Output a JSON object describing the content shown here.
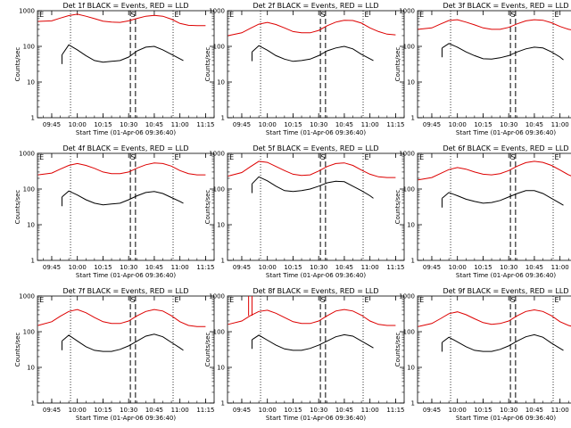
{
  "figure": {
    "common": {
      "type": "line",
      "xlabel": "Start Time (01-Apr-06 09:36:40)",
      "ylabel": "Counts/sec",
      "x_ticks": [
        "09:45",
        "10:00",
        "10:15",
        "10:30",
        "10:45",
        "11:00",
        "11:15"
      ],
      "x_range": [
        "09:36:40",
        "11:20"
      ],
      "y_scale": "log",
      "ylim": [
        1,
        1000
      ],
      "y_ticks": [
        "1",
        "10",
        "100",
        "1000"
      ],
      "series_colors": {
        "events": "#000000",
        "lld": "#dd0000"
      },
      "markers": [
        "E",
        "S",
        "E"
      ],
      "grid": false
    }
  },
  "chart_data": [
    {
      "title": "Det 1f BLACK = Events, RED = LLD",
      "markers": {
        "E1": "09:37",
        "S_dash1": "10:31",
        "S_dash2": "10:34",
        "E2": "10:56"
      },
      "dotted": [
        "09:56",
        "10:56"
      ],
      "series": [
        {
          "name": "Events",
          "x": [
            "09:51",
            "09:55",
            "10:00",
            "10:05",
            "10:10",
            "10:15",
            "10:20",
            "10:25",
            "10:30",
            "10:35",
            "10:40",
            "10:45",
            "10:50",
            "10:55",
            "11:00",
            "11:02"
          ],
          "y": [
            58,
            110,
            80,
            55,
            40,
            36,
            38,
            40,
            50,
            75,
            95,
            100,
            80,
            60,
            45,
            40
          ]
        },
        {
          "name": "LLD",
          "x": [
            "09:37",
            "09:45",
            "09:50",
            "09:55",
            "10:00",
            "10:05",
            "10:10",
            "10:15",
            "10:20",
            "10:25",
            "10:30",
            "10:35",
            "10:40",
            "10:45",
            "10:50",
            "10:55",
            "11:00",
            "11:05",
            "11:10",
            "11:15"
          ],
          "y": [
            500,
            520,
            620,
            730,
            800,
            700,
            600,
            510,
            480,
            470,
            520,
            610,
            700,
            740,
            700,
            580,
            440,
            390,
            380,
            380
          ]
        }
      ]
    },
    {
      "title": "Det 2f BLACK = Events, RED = LLD",
      "markers": {
        "E1": "09:37",
        "S_dash1": "10:31",
        "S_dash2": "10:34",
        "E2": "10:56"
      },
      "dotted": [
        "09:56",
        "10:56"
      ],
      "series": [
        {
          "name": "Events",
          "x": [
            "09:51",
            "09:55",
            "10:00",
            "10:05",
            "10:10",
            "10:15",
            "10:20",
            "10:25",
            "10:30",
            "10:35",
            "10:40",
            "10:45",
            "10:50",
            "10:55",
            "11:00",
            "11:02"
          ],
          "y": [
            70,
            105,
            78,
            55,
            44,
            38,
            40,
            44,
            55,
            75,
            90,
            100,
            85,
            60,
            45,
            40
          ]
        },
        {
          "name": "LLD",
          "x": [
            "09:37",
            "09:45",
            "09:50",
            "09:55",
            "10:00",
            "10:05",
            "10:10",
            "10:15",
            "10:20",
            "10:25",
            "10:30",
            "10:35",
            "10:40",
            "10:45",
            "10:50",
            "10:55",
            "11:00",
            "11:05",
            "11:10",
            "11:15"
          ],
          "y": [
            200,
            240,
            320,
            420,
            470,
            410,
            330,
            260,
            240,
            240,
            280,
            380,
            480,
            540,
            530,
            450,
            330,
            260,
            220,
            210
          ]
        }
      ]
    },
    {
      "title": "Det 3f BLACK = Events, RED = LLD",
      "markers": {
        "E1": "09:37",
        "S_dash1": "10:31",
        "S_dash2": "10:34",
        "E2": "10:56"
      },
      "dotted": [
        "09:56",
        "10:56"
      ],
      "series": [
        {
          "name": "Events",
          "x": [
            "09:51",
            "09:55",
            "10:00",
            "10:05",
            "10:10",
            "10:15",
            "10:20",
            "10:25",
            "10:30",
            "10:35",
            "10:40",
            "10:45",
            "10:50",
            "10:55",
            "11:00",
            "11:02"
          ],
          "y": [
            90,
            120,
            95,
            70,
            55,
            45,
            44,
            48,
            55,
            70,
            85,
            95,
            90,
            70,
            50,
            42
          ]
        },
        {
          "name": "LLD",
          "x": [
            "09:37",
            "09:45",
            "09:50",
            "09:55",
            "10:00",
            "10:05",
            "10:10",
            "10:15",
            "10:20",
            "10:25",
            "10:30",
            "10:35",
            "10:40",
            "10:45",
            "10:50",
            "10:55",
            "11:00",
            "11:05",
            "11:10",
            "11:15"
          ],
          "y": [
            300,
            330,
            420,
            530,
            560,
            480,
            400,
            330,
            300,
            300,
            340,
            430,
            520,
            560,
            540,
            460,
            360,
            300,
            270,
            260
          ]
        }
      ]
    },
    {
      "title": "Det 4f BLACK = Events, RED = LLD",
      "markers": {
        "E1": "09:37",
        "S_dash1": "10:31",
        "S_dash2": "10:34",
        "E2": "10:56"
      },
      "dotted": [
        "09:56",
        "10:56"
      ],
      "series": [
        {
          "name": "Events",
          "x": [
            "09:51",
            "09:55",
            "10:00",
            "10:05",
            "10:10",
            "10:15",
            "10:20",
            "10:25",
            "10:30",
            "10:35",
            "10:40",
            "10:45",
            "10:50",
            "10:55",
            "11:00",
            "11:02"
          ],
          "y": [
            60,
            88,
            68,
            50,
            40,
            36,
            38,
            40,
            50,
            65,
            80,
            85,
            75,
            58,
            45,
            40
          ]
        },
        {
          "name": "LLD",
          "x": [
            "09:37",
            "09:45",
            "09:50",
            "09:55",
            "10:00",
            "10:05",
            "10:10",
            "10:15",
            "10:20",
            "10:25",
            "10:30",
            "10:35",
            "10:40",
            "10:45",
            "10:50",
            "10:55",
            "11:00",
            "11:05",
            "11:10",
            "11:15"
          ],
          "y": [
            250,
            280,
            360,
            460,
            520,
            460,
            380,
            300,
            270,
            270,
            300,
            390,
            480,
            540,
            520,
            440,
            330,
            270,
            250,
            250
          ]
        }
      ]
    },
    {
      "title": "Det 5f BLACK = Events, RED = LLD",
      "markers": {
        "E1": "09:37",
        "S_dash1": "10:31",
        "S_dash2": "10:34",
        "E2": "10:56"
      },
      "dotted": [
        "09:56",
        "10:56"
      ],
      "series": [
        {
          "name": "Events",
          "x": [
            "09:51",
            "09:55",
            "10:00",
            "10:05",
            "10:10",
            "10:15",
            "10:20",
            "10:25",
            "10:30",
            "10:35",
            "10:40",
            "10:45",
            "10:50",
            "10:55",
            "11:00",
            "11:02"
          ],
          "y": [
            140,
            220,
            170,
            120,
            90,
            85,
            90,
            100,
            120,
            150,
            165,
            160,
            120,
            90,
            65,
            55
          ]
        },
        {
          "name": "LLD",
          "x": [
            "09:37",
            "09:45",
            "09:50",
            "09:55",
            "10:00",
            "10:05",
            "10:10",
            "10:15",
            "10:20",
            "10:25",
            "10:30",
            "10:35",
            "10:40",
            "10:45",
            "10:50",
            "10:55",
            "11:00",
            "11:05",
            "11:10",
            "11:15"
          ],
          "y": [
            230,
            290,
            420,
            600,
            560,
            430,
            330,
            260,
            240,
            250,
            320,
            430,
            520,
            540,
            460,
            340,
            260,
            220,
            210,
            210
          ]
        }
      ]
    },
    {
      "title": "Det 6f BLACK = Events, RED = LLD",
      "markers": {
        "E1": "09:37",
        "S_dash1": "10:31",
        "S_dash2": "10:34",
        "E2": "10:56"
      },
      "dotted": [
        "09:56",
        "10:56"
      ],
      "series": [
        {
          "name": "Events",
          "x": [
            "09:51",
            "09:55",
            "10:00",
            "10:05",
            "10:10",
            "10:15",
            "10:20",
            "10:25",
            "10:30",
            "10:35",
            "10:40",
            "10:45",
            "10:50",
            "10:55",
            "11:00",
            "11:02"
          ],
          "y": [
            55,
            80,
            65,
            52,
            45,
            40,
            42,
            48,
            60,
            75,
            90,
            90,
            75,
            55,
            40,
            35
          ]
        },
        {
          "name": "LLD",
          "x": [
            "09:37",
            "09:45",
            "09:50",
            "09:55",
            "10:00",
            "10:05",
            "10:10",
            "10:15",
            "10:20",
            "10:25",
            "10:30",
            "10:35",
            "10:40",
            "10:45",
            "10:50",
            "10:55",
            "11:00",
            "11:05",
            "11:10",
            "11:15"
          ],
          "y": [
            180,
            210,
            270,
            350,
            400,
            360,
            300,
            260,
            250,
            270,
            330,
            440,
            550,
            600,
            560,
            460,
            340,
            250,
            200,
            180
          ]
        }
      ]
    },
    {
      "title": "Det 7f BLACK = Events, RED = LLD",
      "markers": {
        "E1": "09:37",
        "S_dash1": "10:31",
        "S_dash2": "10:34",
        "E2": "10:56"
      },
      "dotted": [
        "09:56",
        "10:56"
      ],
      "series": [
        {
          "name": "Events",
          "x": [
            "09:51",
            "09:55",
            "10:00",
            "10:05",
            "10:10",
            "10:15",
            "10:20",
            "10:25",
            "10:30",
            "10:35",
            "10:40",
            "10:45",
            "10:50",
            "10:55",
            "11:00",
            "11:02"
          ],
          "y": [
            55,
            80,
            55,
            38,
            30,
            28,
            28,
            32,
            40,
            55,
            75,
            85,
            72,
            50,
            35,
            30
          ]
        },
        {
          "name": "LLD",
          "x": [
            "09:37",
            "09:45",
            "09:50",
            "09:55",
            "10:00",
            "10:05",
            "10:10",
            "10:15",
            "10:20",
            "10:25",
            "10:30",
            "10:35",
            "10:40",
            "10:45",
            "10:50",
            "10:55",
            "11:00",
            "11:05",
            "11:10",
            "11:15"
          ],
          "y": [
            150,
            190,
            270,
            370,
            420,
            340,
            250,
            190,
            170,
            170,
            200,
            280,
            370,
            420,
            380,
            280,
            190,
            150,
            140,
            140
          ]
        }
      ]
    },
    {
      "title": "Det 8f BLACK = Events, RED = LLD",
      "markers": {
        "E1": "09:37",
        "S_dash1": "10:31",
        "S_dash2": "10:34",
        "E2": "10:56"
      },
      "dotted": [
        "09:56",
        "10:56"
      ],
      "spike": {
        "x": [
          "09:49",
          "09:51"
        ],
        "y": 1000
      },
      "series": [
        {
          "name": "Events",
          "x": [
            "09:51",
            "09:55",
            "10:00",
            "10:05",
            "10:10",
            "10:15",
            "10:20",
            "10:25",
            "10:30",
            "10:35",
            "10:40",
            "10:45",
            "10:50",
            "10:55",
            "11:00",
            "11:02"
          ],
          "y": [
            60,
            80,
            58,
            42,
            33,
            30,
            30,
            34,
            42,
            55,
            72,
            82,
            75,
            55,
            40,
            35
          ]
        },
        {
          "name": "LLD",
          "x": [
            "09:37",
            "09:45",
            "09:50",
            "09:55",
            "10:00",
            "10:05",
            "10:10",
            "10:15",
            "10:20",
            "10:25",
            "10:30",
            "10:35",
            "10:40",
            "10:45",
            "10:50",
            "10:55",
            "11:00",
            "11:05",
            "11:10",
            "11:15"
          ],
          "y": [
            160,
            200,
            280,
            370,
            400,
            330,
            250,
            190,
            170,
            170,
            200,
            280,
            380,
            420,
            380,
            290,
            200,
            160,
            150,
            150
          ]
        }
      ]
    },
    {
      "title": "Det 9f BLACK = Events, RED = LLD",
      "markers": {
        "E1": "09:37",
        "S_dash1": "10:31",
        "S_dash2": "10:34",
        "E2": "10:56"
      },
      "dotted": [
        "09:56",
        "10:56"
      ],
      "series": [
        {
          "name": "Events",
          "x": [
            "09:51",
            "09:55",
            "10:00",
            "10:05",
            "10:10",
            "10:15",
            "10:20",
            "10:25",
            "10:30",
            "10:35",
            "10:40",
            "10:45",
            "10:50",
            "10:55",
            "11:00",
            "11:02"
          ],
          "y": [
            50,
            70,
            52,
            38,
            30,
            28,
            28,
            32,
            40,
            55,
            72,
            82,
            70,
            48,
            34,
            30
          ]
        },
        {
          "name": "LLD",
          "x": [
            "09:37",
            "09:45",
            "09:50",
            "09:55",
            "10:00",
            "10:05",
            "10:10",
            "10:15",
            "10:20",
            "10:25",
            "10:30",
            "10:35",
            "10:40",
            "10:45",
            "10:50",
            "10:55",
            "11:00",
            "11:05",
            "11:10",
            "11:15"
          ],
          "y": [
            140,
            170,
            230,
            320,
            360,
            300,
            230,
            180,
            160,
            170,
            200,
            280,
            370,
            410,
            370,
            280,
            190,
            150,
            130,
            130
          ]
        }
      ]
    }
  ]
}
